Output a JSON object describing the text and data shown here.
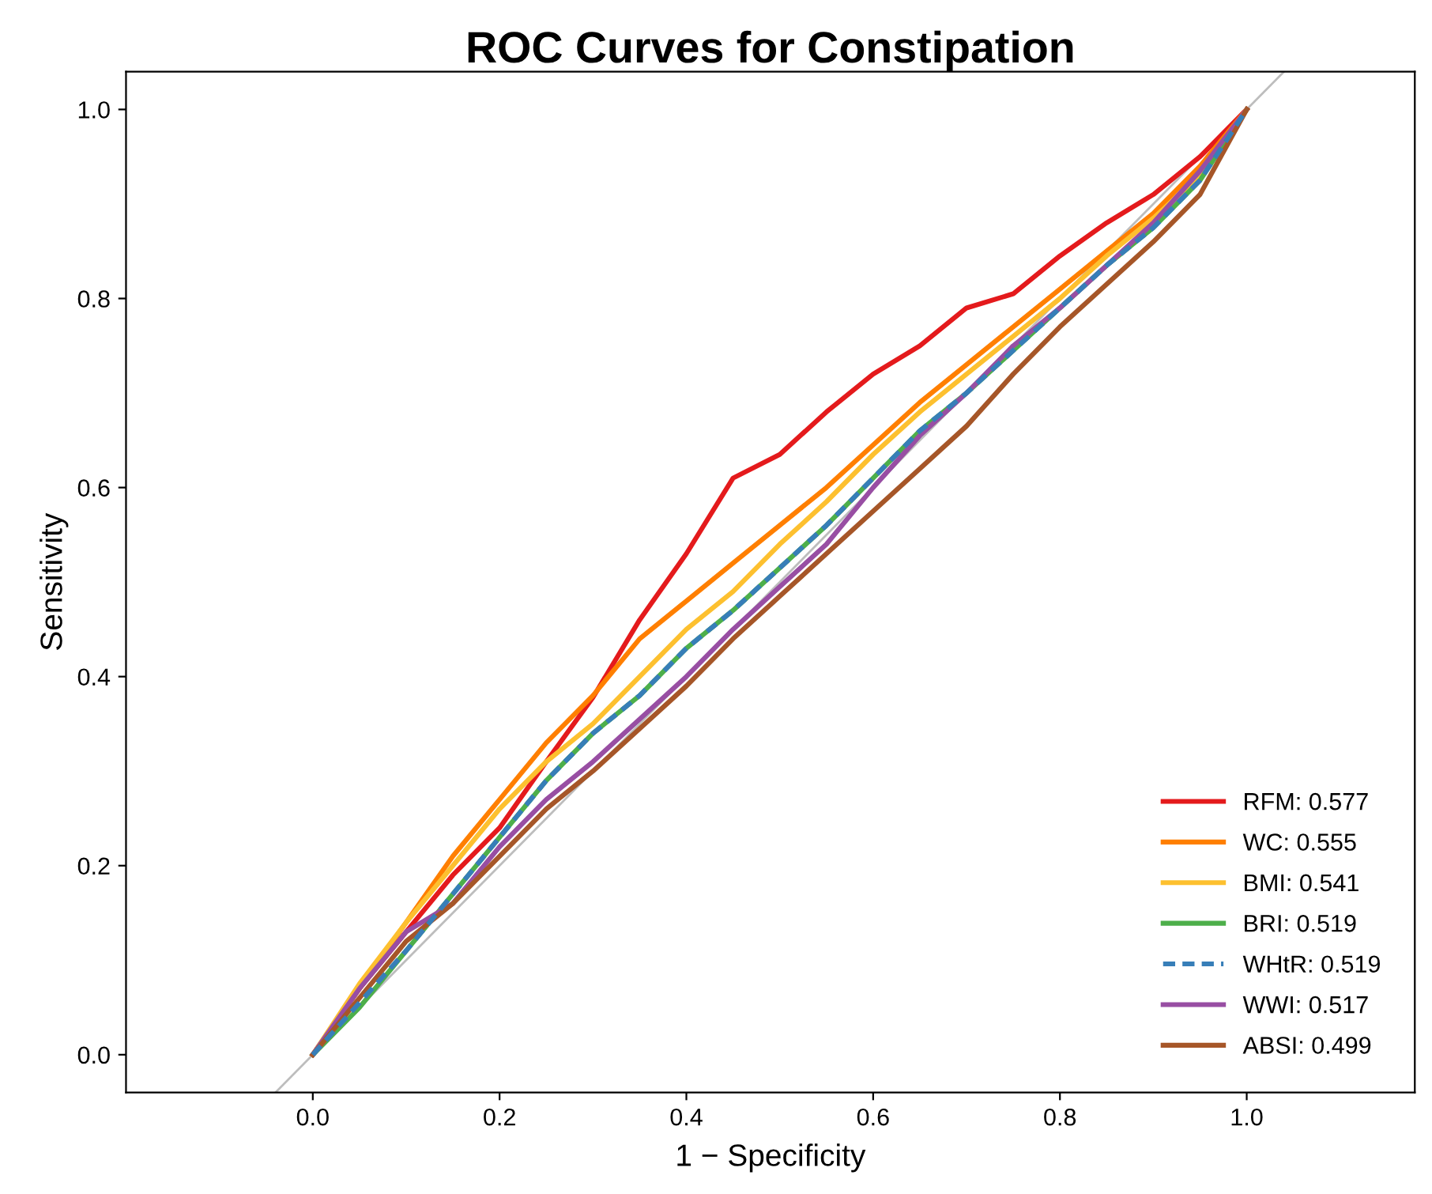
{
  "chart_data": {
    "type": "line",
    "title": "ROC Curves for Constipation",
    "xlabel": "1 − Specificity",
    "ylabel": "Sensitivity",
    "x": [
      0,
      0.05,
      0.1,
      0.15,
      0.2,
      0.25,
      0.3,
      0.35,
      0.4,
      0.45,
      0.5,
      0.55,
      0.6,
      0.65,
      0.7,
      0.75,
      0.8,
      0.85,
      0.9,
      0.95,
      1.0
    ],
    "series": [
      {
        "name": "RFM: 0.577",
        "color": "#e41a1c",
        "values": [
          0,
          0.07,
          0.13,
          0.19,
          0.24,
          0.31,
          0.378,
          0.46,
          0.53,
          0.61,
          0.635,
          0.68,
          0.72,
          0.75,
          0.79,
          0.805,
          0.845,
          0.88,
          0.91,
          0.95,
          1.0
        ]
      },
      {
        "name": "WC: 0.555",
        "color": "#ff7f00",
        "values": [
          0,
          0.07,
          0.14,
          0.21,
          0.27,
          0.33,
          0.38,
          0.44,
          0.48,
          0.52,
          0.56,
          0.6,
          0.645,
          0.69,
          0.73,
          0.77,
          0.81,
          0.85,
          0.89,
          0.94,
          1.0
        ]
      },
      {
        "name": "BMI: 0.541",
        "color": "#fdc02f",
        "values": [
          0,
          0.075,
          0.14,
          0.2,
          0.26,
          0.31,
          0.35,
          0.4,
          0.45,
          0.49,
          0.54,
          0.585,
          0.635,
          0.68,
          0.72,
          0.76,
          0.8,
          0.845,
          0.885,
          0.93,
          1.0
        ]
      },
      {
        "name": "BRI: 0.519",
        "color": "#4daf4a",
        "values": [
          0,
          0.05,
          0.11,
          0.17,
          0.23,
          0.29,
          0.34,
          0.38,
          0.43,
          0.47,
          0.515,
          0.56,
          0.61,
          0.66,
          0.7,
          0.745,
          0.79,
          0.835,
          0.875,
          0.925,
          1.0
        ]
      },
      {
        "name": "WHtR: 0.519",
        "color": "#377eb8",
        "line_style": "dashed",
        "values": [
          0,
          0.055,
          0.11,
          0.17,
          0.23,
          0.29,
          0.34,
          0.38,
          0.43,
          0.47,
          0.515,
          0.56,
          0.61,
          0.66,
          0.7,
          0.745,
          0.79,
          0.835,
          0.875,
          0.925,
          1.0
        ]
      },
      {
        "name": "WWI: 0.517",
        "color": "#984ea3",
        "values": [
          0,
          0.07,
          0.13,
          0.16,
          0.22,
          0.27,
          0.31,
          0.355,
          0.4,
          0.45,
          0.495,
          0.54,
          0.6,
          0.655,
          0.7,
          0.75,
          0.79,
          0.835,
          0.88,
          0.935,
          1.0
        ]
      },
      {
        "name": "ABSI: 0.499",
        "color": "#a65628",
        "values": [
          0,
          0.06,
          0.12,
          0.16,
          0.21,
          0.26,
          0.3,
          0.345,
          0.39,
          0.44,
          0.485,
          0.53,
          0.575,
          0.62,
          0.665,
          0.72,
          0.77,
          0.815,
          0.86,
          0.91,
          1.0
        ]
      },
      {
        "color": "#bdbdbd",
        "x": [
          -0.04,
          1.04
        ],
        "values": [
          -0.04,
          1.04
        ]
      }
    ],
    "xlim": [
      -0.2,
      1.18
    ],
    "ylim": [
      -0.04,
      1.04
    ],
    "xticks": [
      {
        "value": 0,
        "label": "0.0"
      },
      0.2,
      0.4,
      0.6,
      0.8,
      {
        "value": 1,
        "label": "1.0"
      }
    ],
    "yticks": [
      {
        "value": 0,
        "label": "0.0"
      },
      0.2,
      0.4,
      0.6,
      0.8,
      {
        "value": 1,
        "label": "1.0"
      }
    ],
    "grid": false,
    "legend": "bottom right",
    "line_style": "solid"
  }
}
